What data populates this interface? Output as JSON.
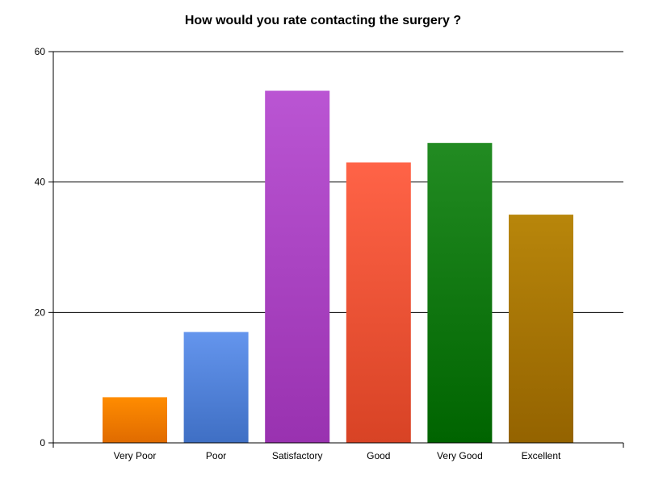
{
  "chart_data": {
    "type": "bar",
    "title": "How would you rate contacting the surgery ?",
    "xlabel": "",
    "ylabel": "",
    "categories": [
      "Very Poor",
      "Poor",
      "Satisfactory",
      "Good",
      "Very Good",
      "Excellent"
    ],
    "values": [
      7,
      17,
      54,
      43,
      46,
      35
    ],
    "ylim": [
      0,
      60
    ],
    "yticks": [
      0,
      20,
      40,
      60
    ],
    "grid": true,
    "legend": "none",
    "colors": [
      {
        "top": "#ff8c00",
        "bottom": "#e06b00"
      },
      {
        "top": "#6495ed",
        "bottom": "#3f6fc4"
      },
      {
        "top": "#ba55d3",
        "bottom": "#9932b0"
      },
      {
        "top": "#ff6347",
        "bottom": "#d84325"
      },
      {
        "top": "#228b22",
        "bottom": "#006400"
      },
      {
        "top": "#b8860b",
        "bottom": "#946300"
      }
    ]
  }
}
